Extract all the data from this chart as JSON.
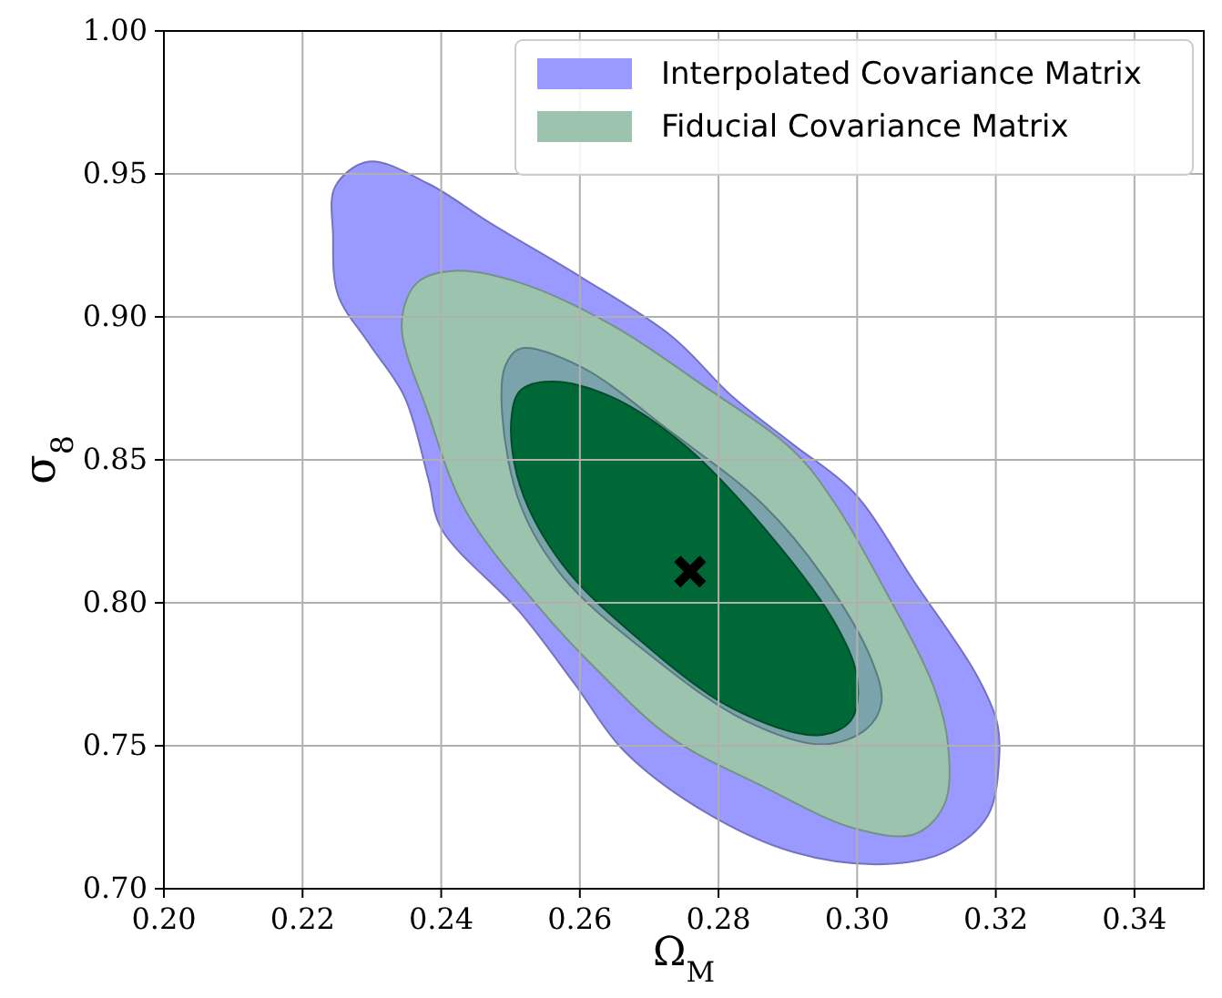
{
  "chart_data": {
    "type": "area",
    "xlabel": "Ω$_{M}$",
    "ylabel": "σ$_{8}$",
    "xlim": [
      0.2,
      0.35
    ],
    "ylim": [
      0.7,
      1.0
    ],
    "xticks": [
      {
        "value": 0.2,
        "label": "0.20"
      },
      {
        "value": 0.22,
        "label": "0.22"
      },
      {
        "value": 0.24,
        "label": "0.24"
      },
      {
        "value": 0.26,
        "label": "0.26"
      },
      {
        "value": 0.28,
        "label": "0.28"
      },
      {
        "value": 0.3,
        "label": "0.30"
      },
      {
        "value": 0.32,
        "label": "0.32"
      },
      {
        "value": 0.34,
        "label": "0.34"
      }
    ],
    "yticks": [
      {
        "value": 0.7,
        "label": "0.70"
      },
      {
        "value": 0.75,
        "label": "0.75"
      },
      {
        "value": 0.8,
        "label": "0.80"
      },
      {
        "value": 0.85,
        "label": "0.85"
      },
      {
        "value": 0.9,
        "label": "0.90"
      },
      {
        "value": 0.95,
        "label": "0.95"
      },
      {
        "value": 1.0,
        "label": "1.00"
      }
    ],
    "grid": true,
    "legend": "top right",
    "series": [
      {
        "name": "Interpolated Covariance Matrix",
        "color": "#9999ff",
        "x": [
          0.2295,
          0.2382,
          0.247,
          0.2601,
          0.2733,
          0.282,
          0.2908,
          0.2995,
          0.3083,
          0.317,
          0.3201,
          0.3205,
          0.3188,
          0.3126,
          0.3039,
          0.2908,
          0.2776,
          0.2663,
          0.2593,
          0.2514,
          0.24,
          0.2382,
          0.2347,
          0.2295,
          0.2251,
          0.2244,
          0.2247
        ],
        "values": [
          0.9543,
          0.9465,
          0.9329,
          0.914,
          0.8931,
          0.8721,
          0.8553,
          0.8386,
          0.8071,
          0.7757,
          0.7589,
          0.7463,
          0.7254,
          0.7128,
          0.7086,
          0.7128,
          0.7275,
          0.7484,
          0.7715,
          0.7966,
          0.826,
          0.8428,
          0.8721,
          0.891,
          0.9078,
          0.9287,
          0.9455
        ]
      },
      {
        "name": "Fiducial Covariance Matrix",
        "color": "#9cc3ae",
        "x": [
          0.2418,
          0.2514,
          0.2645,
          0.2776,
          0.2908,
          0.2969,
          0.3039,
          0.3109,
          0.3131,
          0.3126,
          0.3083,
          0.2995,
          0.2864,
          0.2733,
          0.2628,
          0.254,
          0.2435,
          0.2382,
          0.2343,
          0.2365
        ],
        "values": [
          0.9161,
          0.9119,
          0.8973,
          0.8763,
          0.8532,
          0.8344,
          0.805,
          0.7715,
          0.7505,
          0.7296,
          0.7191,
          0.7212,
          0.7358,
          0.7526,
          0.7757,
          0.7987,
          0.8323,
          0.8658,
          0.8973,
          0.9119
        ]
      },
      {
        "color": "#7ba3ac",
        "x": [
          0.2514,
          0.2601,
          0.2733,
          0.2864,
          0.2951,
          0.3021,
          0.3035,
          0.3013,
          0.2951,
          0.2838,
          0.2689,
          0.2575,
          0.2514,
          0.2488,
          0.2492
        ],
        "values": [
          0.8889,
          0.8826,
          0.8595,
          0.8344,
          0.8092,
          0.7799,
          0.7652,
          0.7558,
          0.7505,
          0.7589,
          0.7841,
          0.8092,
          0.8344,
          0.8658,
          0.8826
        ]
      },
      {
        "color": "#006837",
        "x": [
          0.2558,
          0.2645,
          0.275,
          0.2881,
          0.2969,
          0.3,
          0.2991,
          0.2943,
          0.282,
          0.268,
          0.2575,
          0.2514,
          0.2501,
          0.2514
        ],
        "values": [
          0.8774,
          0.8721,
          0.8553,
          0.8218,
          0.7925,
          0.7736,
          0.7589,
          0.7537,
          0.7631,
          0.7883,
          0.8134,
          0.8407,
          0.8637,
          0.8742
        ]
      },
      {
        "type": "scatter",
        "marker": "cross",
        "color": "#000000",
        "x": [
          0.2759
        ],
        "values": [
          0.8109
        ]
      }
    ]
  }
}
